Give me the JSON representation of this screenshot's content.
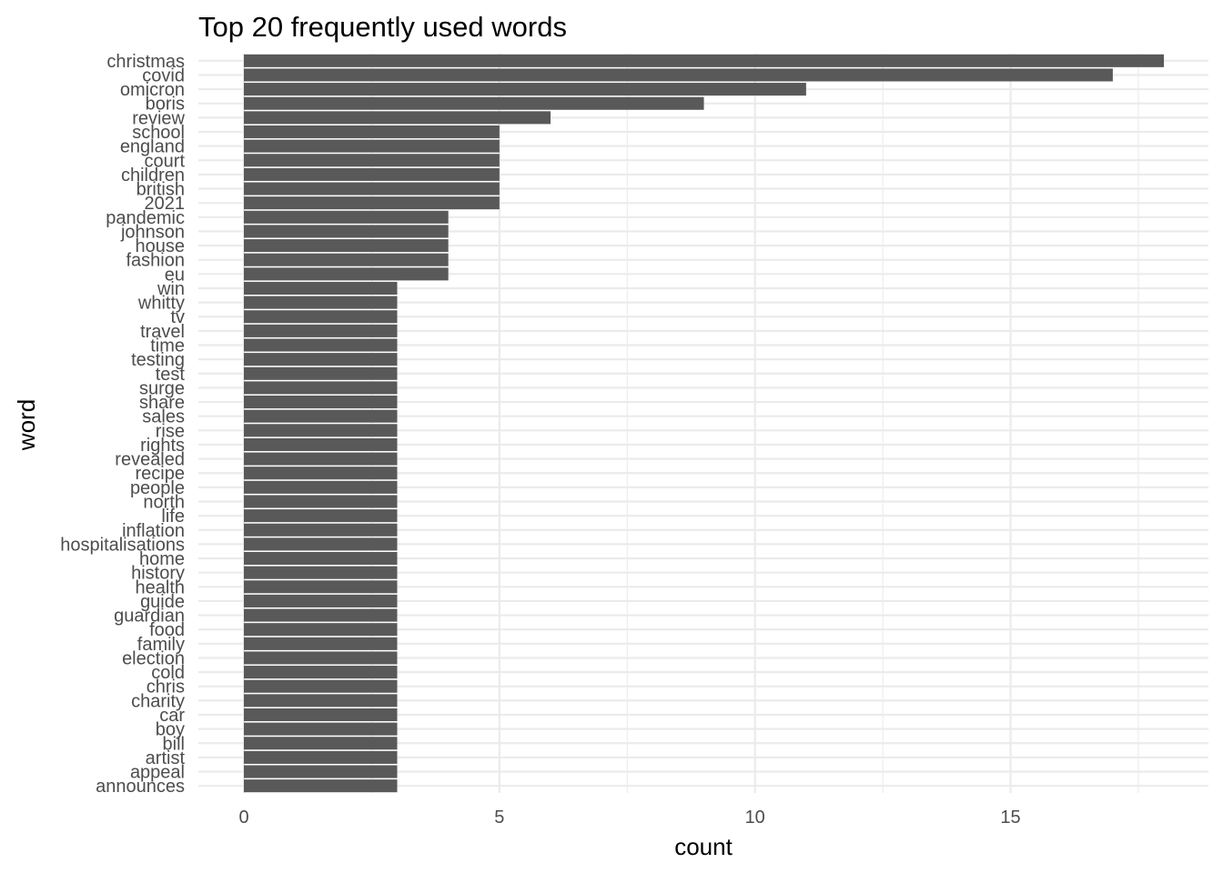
{
  "chart_data": {
    "type": "bar",
    "orientation": "horizontal",
    "title": "Top 20 frequently used words",
    "xlabel": "count",
    "ylabel": "word",
    "xlim": [
      0,
      18.9
    ],
    "xticks": [
      0,
      5,
      10,
      15
    ],
    "grid": true,
    "legend": "none",
    "bar_color": "#595959",
    "grid_color": "#ebebeb",
    "categories": [
      "christmas",
      "covid",
      "omicron",
      "boris",
      "review",
      "school",
      "england",
      "court",
      "children",
      "british",
      "2021",
      "pandemic",
      "johnson",
      "house",
      "fashion",
      "eu",
      "win",
      "whitty",
      "tv",
      "travel",
      "time",
      "testing",
      "test",
      "surge",
      "share",
      "sales",
      "rise",
      "rights",
      "revealed",
      "recipe",
      "people",
      "north",
      "life",
      "inflation",
      "hospitalisations",
      "home",
      "history",
      "health",
      "guide",
      "guardian",
      "food",
      "family",
      "election",
      "cold",
      "chris",
      "charity",
      "car",
      "boy",
      "bill",
      "artist",
      "appeal",
      "announces"
    ],
    "values": [
      18,
      17,
      11,
      9,
      6,
      5,
      5,
      5,
      5,
      5,
      5,
      4,
      4,
      4,
      4,
      4,
      3,
      3,
      3,
      3,
      3,
      3,
      3,
      3,
      3,
      3,
      3,
      3,
      3,
      3,
      3,
      3,
      3,
      3,
      3,
      3,
      3,
      3,
      3,
      3,
      3,
      3,
      3,
      3,
      3,
      3,
      3,
      3,
      3,
      3,
      3,
      3
    ]
  }
}
